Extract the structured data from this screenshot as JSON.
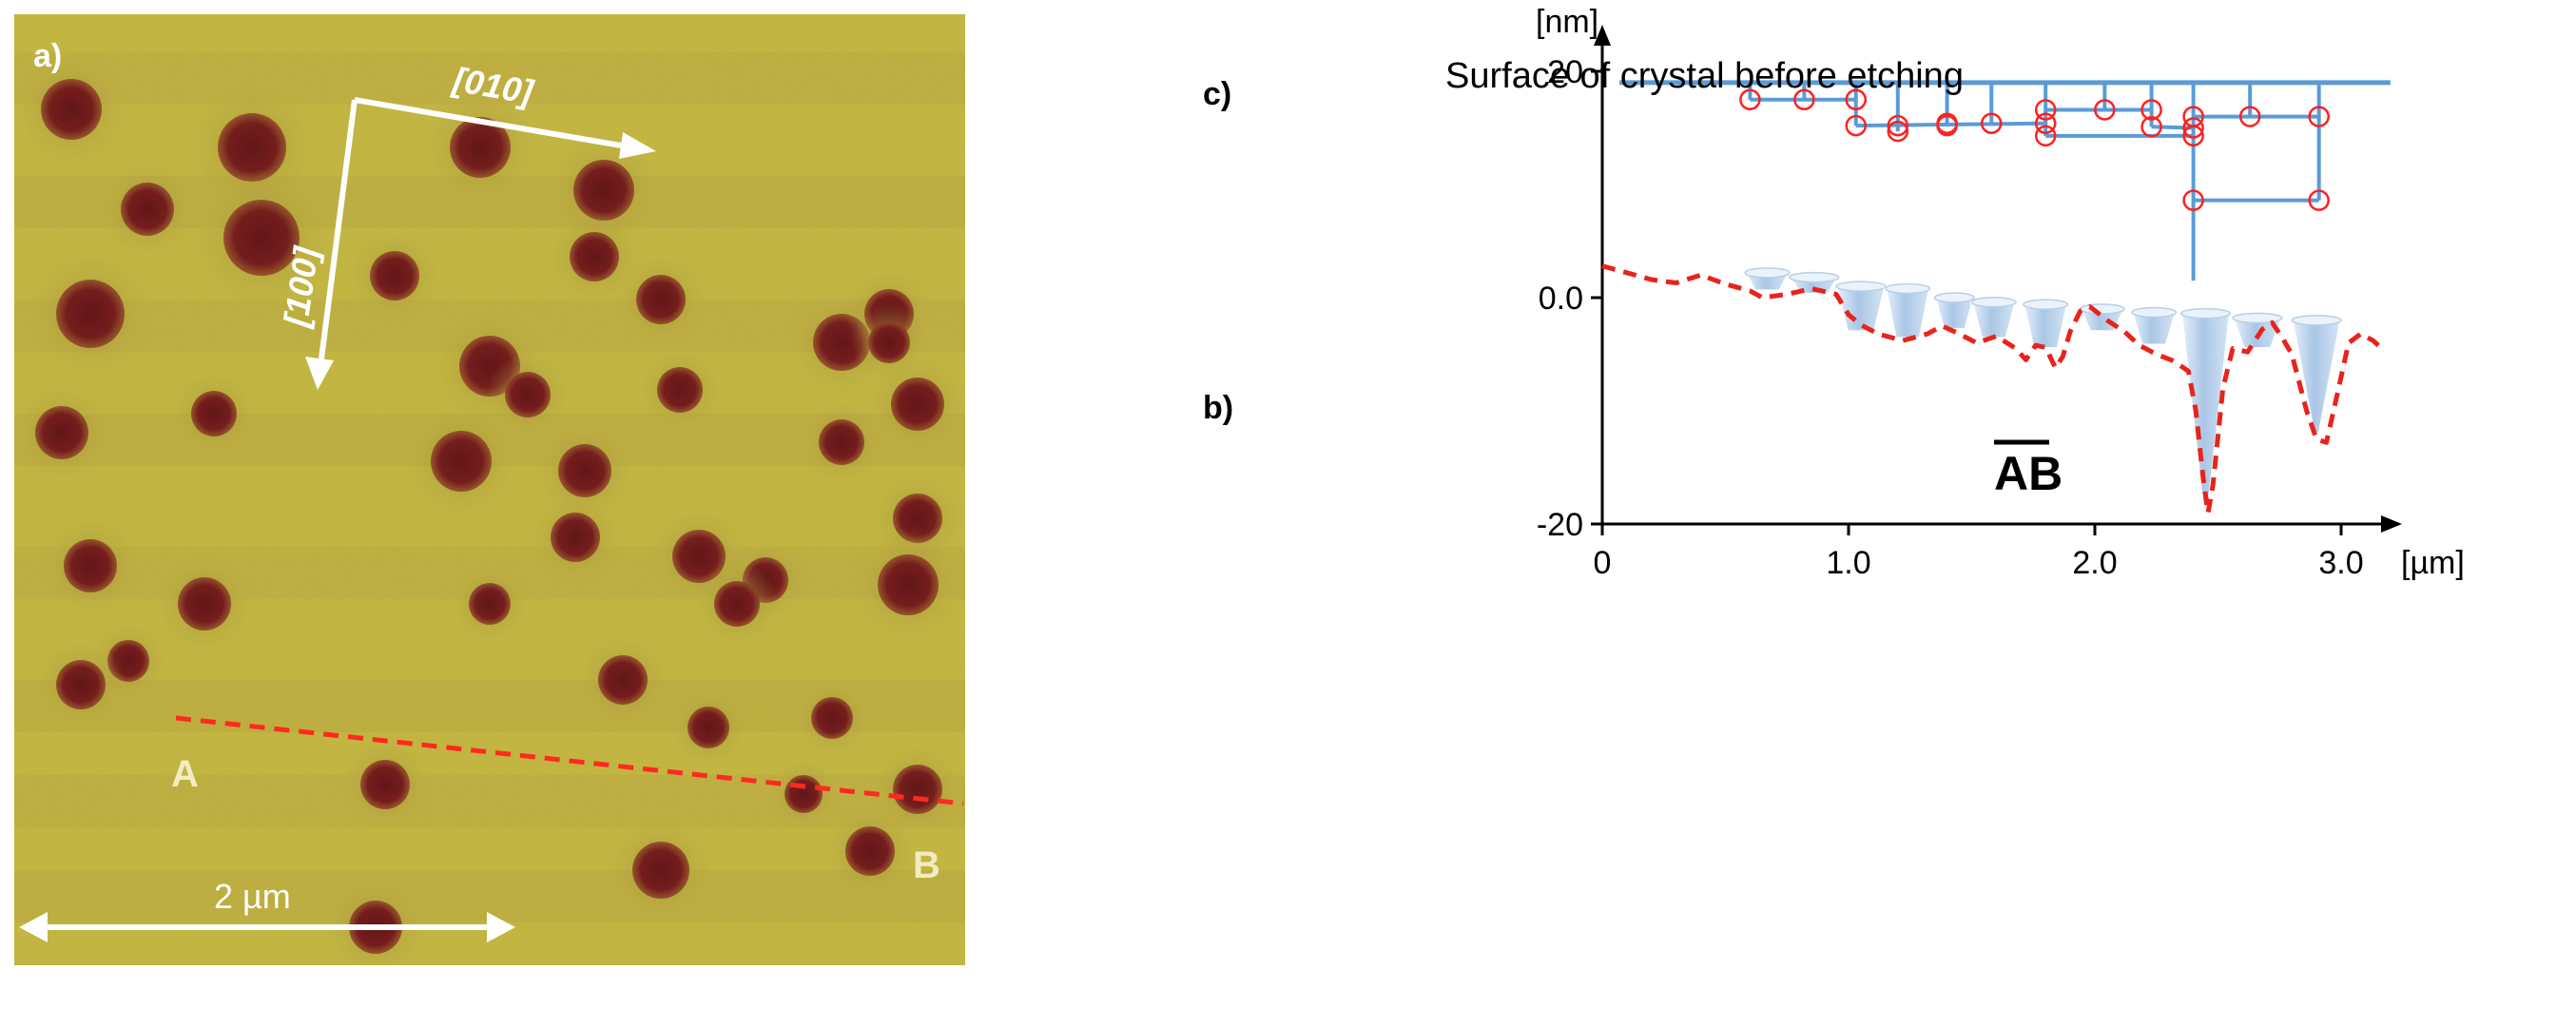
{
  "panel_a": {
    "label": "a)",
    "direction_010": "[010]",
    "direction_100": "[100]",
    "point_a": "A",
    "point_b": "B",
    "scale_bar": "2 µm",
    "colors": {
      "background": "#c3b640",
      "pit": "#6e0f17",
      "line": "#ff2a1e",
      "annotation": "#ffffff"
    }
  },
  "chart_data": {
    "type": "line",
    "x_unit": "[µm]",
    "y_unit": "[nm]",
    "xlim": [
      0,
      3.2
    ],
    "ylim": [
      -20,
      23
    ],
    "x_ticks": [
      {
        "value": 0,
        "label": "0"
      },
      {
        "value": 1.0,
        "label": "1.0"
      },
      {
        "value": 2.0,
        "label": "2.0"
      },
      {
        "value": 3.0,
        "label": "3.0"
      }
    ],
    "y_ticks": [
      {
        "value": 20,
        "label": "20"
      },
      {
        "value": 0,
        "label": "0.0"
      },
      {
        "value": -20,
        "label": "-20"
      }
    ],
    "panel_c_label": "c)",
    "panel_b_label": "b)",
    "surface_label": "Surface of crystal before etching",
    "profile_label": "AB",
    "surface_level": 19,
    "series": [
      {
        "name": "AB profile",
        "color": "#e8231c",
        "points": [
          [
            0.0,
            2.8
          ],
          [
            0.1,
            2.2
          ],
          [
            0.2,
            1.6
          ],
          [
            0.3,
            1.3
          ],
          [
            0.4,
            2.0
          ],
          [
            0.5,
            1.2
          ],
          [
            0.6,
            0.6
          ],
          [
            0.65,
            0.0
          ],
          [
            0.75,
            0.3
          ],
          [
            0.85,
            0.8
          ],
          [
            0.95,
            0.3
          ],
          [
            1.0,
            -1.5
          ],
          [
            1.05,
            -2.4
          ],
          [
            1.12,
            -3.2
          ],
          [
            1.22,
            -3.8
          ],
          [
            1.32,
            -3.2
          ],
          [
            1.38,
            -2.5
          ],
          [
            1.45,
            -3.2
          ],
          [
            1.52,
            -4.0
          ],
          [
            1.6,
            -3.4
          ],
          [
            1.68,
            -4.5
          ],
          [
            1.72,
            -5.5
          ],
          [
            1.76,
            -4.2
          ],
          [
            1.8,
            -4.4
          ],
          [
            1.84,
            -6.2
          ],
          [
            1.87,
            -5.2
          ],
          [
            1.9,
            -3.0
          ],
          [
            1.94,
            -1.2
          ],
          [
            1.98,
            -0.8
          ],
          [
            2.05,
            -2.0
          ],
          [
            2.12,
            -3.0
          ],
          [
            2.18,
            -4.2
          ],
          [
            2.25,
            -5.0
          ],
          [
            2.32,
            -5.6
          ],
          [
            2.38,
            -6.5
          ],
          [
            2.41,
            -10.0
          ],
          [
            2.44,
            -16.0
          ],
          [
            2.46,
            -19.0
          ],
          [
            2.48,
            -16.5
          ],
          [
            2.52,
            -8.0
          ],
          [
            2.56,
            -4.5
          ],
          [
            2.62,
            -4.8
          ],
          [
            2.68,
            -2.8
          ],
          [
            2.72,
            -2.2
          ],
          [
            2.76,
            -3.5
          ],
          [
            2.8,
            -5.0
          ],
          [
            2.86,
            -10.0
          ],
          [
            2.9,
            -12.5
          ],
          [
            2.94,
            -12.8
          ],
          [
            2.99,
            -8.0
          ],
          [
            3.03,
            -4.0
          ],
          [
            3.08,
            -3.2
          ],
          [
            3.13,
            -3.8
          ],
          [
            3.17,
            -4.6
          ]
        ]
      }
    ],
    "pits": [
      {
        "x": 0.67,
        "w": 0.18,
        "top": 2.2,
        "depth": 0.6
      },
      {
        "x": 0.86,
        "w": 0.2,
        "top": 1.8,
        "depth": 0.3
      },
      {
        "x": 1.05,
        "w": 0.2,
        "top": 1.0,
        "depth": -3.0
      },
      {
        "x": 1.24,
        "w": 0.18,
        "top": 0.8,
        "depth": -3.6
      },
      {
        "x": 1.43,
        "w": 0.16,
        "top": 0.0,
        "depth": -2.8
      },
      {
        "x": 1.59,
        "w": 0.18,
        "top": -0.4,
        "depth": -3.6
      },
      {
        "x": 1.8,
        "w": 0.18,
        "top": -0.6,
        "depth": -4.5
      },
      {
        "x": 2.03,
        "w": 0.18,
        "top": -1.0,
        "depth": -3.0
      },
      {
        "x": 2.24,
        "w": 0.18,
        "top": -1.3,
        "depth": -4.2
      },
      {
        "x": 2.45,
        "w": 0.2,
        "top": -1.4,
        "depth": -18.5
      },
      {
        "x": 2.66,
        "w": 0.2,
        "top": -1.8,
        "depth": -4.5
      },
      {
        "x": 2.9,
        "w": 0.2,
        "top": -2.0,
        "depth": -12.0
      }
    ],
    "step_tree": {
      "nodes": [
        [
          0.6,
          17.5
        ],
        [
          0.82,
          17.5
        ],
        [
          1.03,
          17.5
        ],
        [
          1.03,
          15.2
        ],
        [
          1.2,
          15.2
        ],
        [
          1.2,
          14.7
        ],
        [
          1.4,
          15.4
        ],
        [
          1.4,
          15.2
        ],
        [
          1.58,
          15.4
        ],
        [
          1.8,
          16.6
        ],
        [
          1.8,
          15.4
        ],
        [
          1.8,
          14.3
        ],
        [
          2.04,
          16.6
        ],
        [
          2.23,
          16.6
        ],
        [
          2.23,
          15.1
        ],
        [
          2.4,
          16.0
        ],
        [
          2.4,
          15.0
        ],
        [
          2.4,
          14.3
        ],
        [
          2.4,
          8.6
        ],
        [
          2.63,
          16.0
        ],
        [
          2.91,
          16.0
        ],
        [
          2.91,
          8.6
        ]
      ],
      "branches": [
        0.6,
        0.82,
        1.03,
        1.2,
        1.4,
        1.58,
        1.8,
        2.04,
        2.23,
        2.4,
        2.63,
        2.91
      ],
      "links": [
        [
          [
            0.6,
            17.5
          ],
          [
            1.03,
            17.5
          ]
        ],
        [
          [
            1.03,
            15.2
          ],
          [
            1.8,
            15.4
          ]
        ],
        [
          [
            1.8,
            16.6
          ],
          [
            2.23,
            16.6
          ]
        ],
        [
          [
            1.8,
            14.3
          ],
          [
            2.4,
            14.3
          ]
        ],
        [
          [
            2.23,
            15.1
          ],
          [
            2.4,
            15.0
          ]
        ],
        [
          [
            2.4,
            16.0
          ],
          [
            2.91,
            16.0
          ]
        ],
        [
          [
            2.4,
            8.6
          ],
          [
            2.91,
            8.6
          ]
        ]
      ],
      "deep_stem": {
        "x": 2.4,
        "bottom": 1.5
      },
      "colors": {
        "line": "#5b9bd5",
        "node": "#ff2020"
      }
    }
  }
}
